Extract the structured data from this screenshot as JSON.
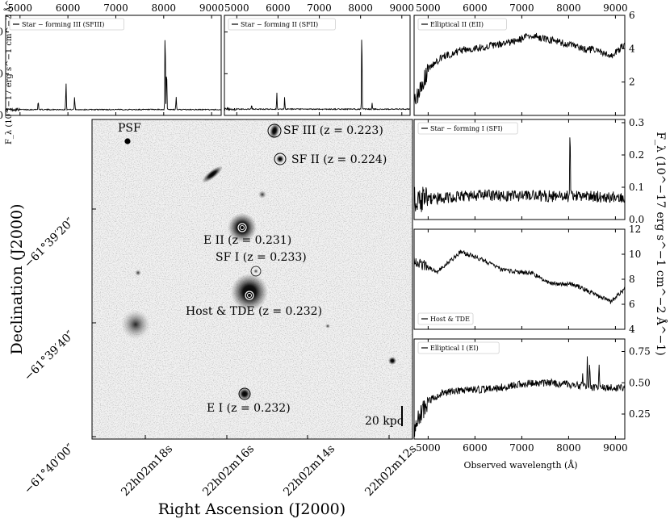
{
  "figure": {
    "image": {
      "labels": {
        "psf": "PSF",
        "sf3": "SF III (z = 0.223)",
        "sf2": "SF II (z = 0.224)",
        "e2": "E II (z = 0.231)",
        "sf1": "SF I (z = 0.233)",
        "host": "Host & TDE (z = 0.232)",
        "e1": "E I (z = 0.232)"
      },
      "scalebar": "20 kpc",
      "ra_ticks": [
        "22h02m18s",
        "22h02m16s",
        "22h02m14s",
        "22h02m12s"
      ],
      "dec_ticks": [
        "−61°39′20″",
        "−61°39′40″",
        "−61°40′00″"
      ],
      "xlabel": "Right Ascension (J2000)",
      "ylabel": "Declination (J2000)"
    },
    "wavelength_ticks": [
      "5000",
      "6000",
      "7000",
      "8000",
      "9000"
    ],
    "left_flux_label": "F_λ (10^−17 erg s^−1 cm^−2 Å^−1)",
    "right_flux_label": "F_λ (10^−17 erg s^−1 cm^−2 Å^−1)",
    "xlabel_bottom": "Observed wavelength (Å)",
    "line_color": "#000000"
  },
  "chart_data": [
    {
      "type": "line",
      "legend": "Star − forming III (SFIII)",
      "xlim": [
        4700,
        9200
      ],
      "ylim": [
        0,
        24
      ],
      "yticks": [
        "0",
        "10",
        "20"
      ],
      "continuum": [
        [
          4700,
          1.4
        ],
        [
          9200,
          1.4
        ]
      ],
      "noise": 0.12,
      "lines": [
        [
          5380,
          3.5
        ],
        [
          5960,
          8.0
        ],
        [
          6140,
          4.5
        ],
        [
          8030,
          22.0
        ],
        [
          8060,
          12.0
        ],
        [
          8260,
          4.5
        ]
      ]
    },
    {
      "type": "line",
      "legend": "Star − forming II (SFII)",
      "xlim": [
        4700,
        9200
      ],
      "ylim": [
        0,
        24
      ],
      "yticks": [
        "0",
        "10",
        "20"
      ],
      "continuum": [
        [
          4700,
          1.5
        ],
        [
          9200,
          1.5
        ]
      ],
      "noise": 0.12,
      "lines": [
        [
          5360,
          2.5
        ],
        [
          5970,
          5.5
        ],
        [
          6160,
          4.5
        ],
        [
          8030,
          22.0
        ],
        [
          8280,
          3.0
        ]
      ]
    },
    {
      "type": "line",
      "legend": "Elliptical II (EII)",
      "xlim": [
        4700,
        9200
      ],
      "ylim": [
        0,
        6
      ],
      "yticks": [
        "2",
        "4",
        "6"
      ],
      "axis": "right",
      "continuum": [
        [
          4700,
          0.8
        ],
        [
          4850,
          1.6
        ],
        [
          5000,
          2.8
        ],
        [
          5300,
          3.5
        ],
        [
          5700,
          3.9
        ],
        [
          6200,
          4.1
        ],
        [
          6800,
          4.4
        ],
        [
          7200,
          4.8
        ],
        [
          7800,
          4.4
        ],
        [
          8300,
          4.0
        ],
        [
          8600,
          3.9
        ],
        [
          8900,
          3.5
        ],
        [
          9200,
          4.3
        ]
      ],
      "noise": 0.22,
      "lines": []
    },
    {
      "type": "line",
      "legend": "Star − forming I (SFI)",
      "xlim": [
        4700,
        9200
      ],
      "ylim": [
        0,
        0.31
      ],
      "yticks": [
        "0.0",
        "0.1",
        "0.2",
        "0.3"
      ],
      "axis": "right",
      "continuum": [
        [
          4700,
          0.06
        ],
        [
          6000,
          0.075
        ],
        [
          9200,
          0.07
        ]
      ],
      "noise": 0.018,
      "lines": [
        [
          8030,
          0.29
        ]
      ]
    },
    {
      "type": "line",
      "legend": "Host & TDE",
      "xlim": [
        4700,
        9200
      ],
      "ylim": [
        4,
        12
      ],
      "yticks": [
        "4",
        "6",
        "8",
        "10",
        "12"
      ],
      "axis": "right",
      "continuum": [
        [
          4700,
          9.5
        ],
        [
          5200,
          8.6
        ],
        [
          5700,
          10.2
        ],
        [
          6200,
          9.5
        ],
        [
          6600,
          8.7
        ],
        [
          7200,
          8.5
        ],
        [
          7600,
          7.7
        ],
        [
          8100,
          7.6
        ],
        [
          8500,
          6.9
        ],
        [
          8900,
          6.2
        ],
        [
          9200,
          7.2
        ]
      ],
      "noise": 0.18,
      "lines": []
    },
    {
      "type": "line",
      "legend": "Elliptical I (EI)",
      "xlim": [
        4700,
        9200
      ],
      "ylim": [
        0.05,
        0.85
      ],
      "yticks": [
        "0.25",
        "0.50",
        "0.75"
      ],
      "axis": "right",
      "continuum": [
        [
          4700,
          0.12
        ],
        [
          4800,
          0.22
        ],
        [
          5000,
          0.35
        ],
        [
          5300,
          0.42
        ],
        [
          5800,
          0.44
        ],
        [
          6300,
          0.45
        ],
        [
          7000,
          0.49
        ],
        [
          7600,
          0.5
        ],
        [
          8200,
          0.48
        ],
        [
          8600,
          0.46
        ],
        [
          9200,
          0.46
        ]
      ],
      "noise": 0.03,
      "lines": [
        [
          8400,
          0.72
        ],
        [
          8450,
          0.7
        ],
        [
          8650,
          0.66
        ],
        [
          8300,
          0.6
        ]
      ]
    }
  ]
}
